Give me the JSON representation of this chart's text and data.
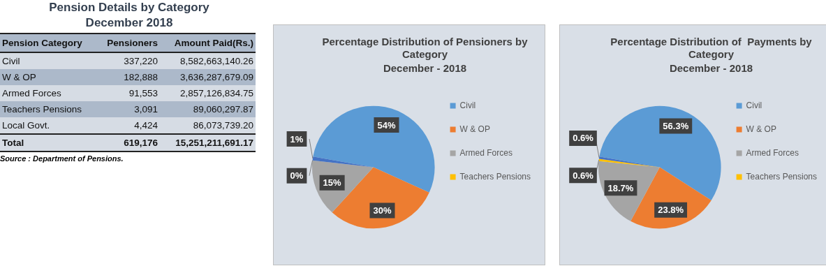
{
  "chart_data": [
    {
      "type": "other",
      "title": "Pension Details by  Category",
      "subtitle": "December 2018",
      "xlabel": "Pension Category",
      "categories": [
        "Civil",
        "W & OP",
        "Armed Forces",
        "Teachers Pensions",
        "Local Govt.",
        "Total"
      ],
      "series": [
        {
          "name": "Pensioners",
          "colors": [
            "#d6dce4",
            "#acb9ca",
            "#d6dce4",
            "#acb9ca",
            "#d6dce4",
            "#d6dce4"
          ],
          "values": [
            337220,
            182888,
            91553,
            3091,
            4424,
            619176
          ],
          "value_labels": [
            "337,220",
            "182,888",
            "91,553",
            "3,091",
            "4,424",
            "619,176"
          ]
        },
        {
          "name": "Amount Paid(Rs.)",
          "colors": [
            "#d6dce4",
            "#acb9ca",
            "#d6dce4",
            "#acb9ca",
            "#d6dce4",
            "#d6dce4"
          ],
          "values": [
            8582663140.26,
            3636287679.09,
            2857126834.75,
            89060297.87,
            86073739.2,
            15251211691.17
          ],
          "value_labels": [
            "8,582,663,140.26",
            "3,636,287,679.09",
            "2,857,126,834.75",
            "89,060,297.87",
            "86,073,739.20",
            "15,251,211,691.17"
          ]
        }
      ],
      "annotations": [
        "Source : Department of Pensions."
      ]
    },
    {
      "type": "pie",
      "title": "Percentage Distribution of Pensioners by Category",
      "subtitle": "December - 2018",
      "categories": [
        "Civil",
        "W & OP",
        "Armed Forces",
        "Teachers Pensions",
        null
      ],
      "values": [
        54,
        30,
        15,
        0,
        1
      ],
      "value_labels": [
        "54%",
        "30%",
        "15%",
        "0%",
        "1%"
      ],
      "colors": [
        "#5b9bd5",
        "#ed7d31",
        "#a5a5a5",
        "#ffc000",
        "#4472c4"
      ],
      "legend": "right"
    },
    {
      "type": "pie",
      "title": "Percentage Distribution of  Payments by Category",
      "subtitle": "December - 2018",
      "categories": [
        "Civil",
        "W & OP",
        "Armed Forces",
        "Teachers Pensions",
        null
      ],
      "values": [
        56.3,
        23.8,
        18.7,
        0.6,
        0.6
      ],
      "value_labels": [
        "56.3%",
        "23.8%",
        "18.7%",
        "0.6%",
        "0.6%"
      ],
      "colors": [
        "#5b9bd5",
        "#ed7d31",
        "#a5a5a5",
        "#ffc000",
        "#4472c4"
      ],
      "legend": "right"
    }
  ]
}
